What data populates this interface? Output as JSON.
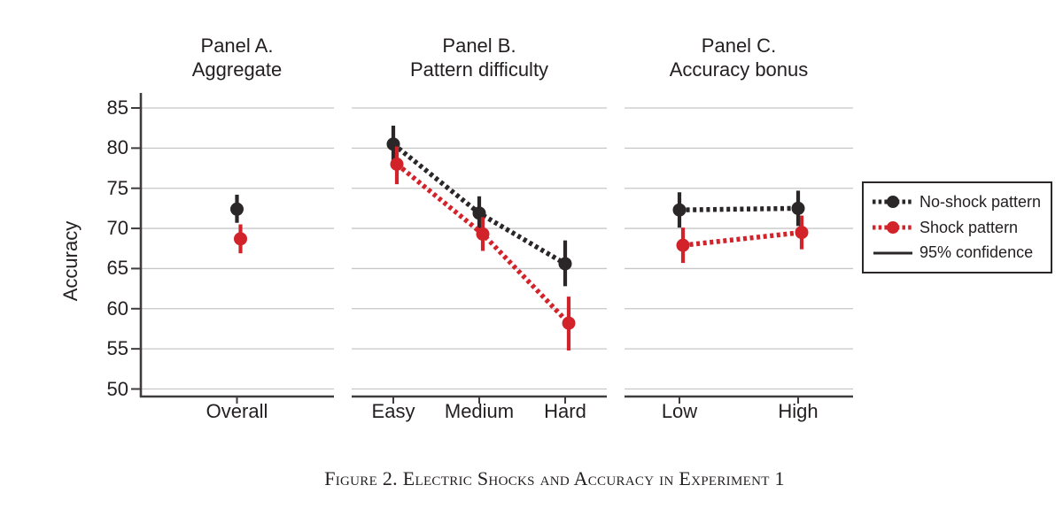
{
  "figure": {
    "y_axis_label": "Accuracy",
    "caption": "Figure 2. Electric Shocks and Accuracy in Experiment 1"
  },
  "legend": {
    "items": [
      {
        "label": "No-shock pattern",
        "type": "dotted-dot",
        "color": "#2b2627"
      },
      {
        "label": "Shock pattern",
        "type": "dotted-dot",
        "color": "#d2232a"
      },
      {
        "label": "95% confidence",
        "type": "solid-line",
        "color": "#2b2627"
      }
    ]
  },
  "chart_data": {
    "type": "scatter",
    "ylabel": "Accuracy",
    "xlabel": "",
    "ylim": [
      50,
      85
    ],
    "yticks": [
      50,
      55,
      60,
      65,
      70,
      75,
      80,
      85
    ],
    "grid": true,
    "legend_position": "right",
    "grid_color": "#c7c7c7",
    "axis_color": "#403c3d",
    "text_color": "#231f20",
    "panels": [
      {
        "title1": "Panel A.",
        "title2": "Aggregate",
        "categories": [
          "Overall"
        ],
        "series": [
          {
            "name": "No-shock pattern",
            "color": "#2b2627",
            "connect": false,
            "values": [
              72.4
            ],
            "ci_low": [
              70.7
            ],
            "ci_high": [
              74.2
            ]
          },
          {
            "name": "Shock pattern",
            "color": "#d2232a",
            "connect": false,
            "values": [
              68.7
            ],
            "ci_low": [
              66.9
            ],
            "ci_high": [
              70.5
            ]
          }
        ]
      },
      {
        "title1": "Panel B.",
        "title2": "Pattern difficulty",
        "categories": [
          "Easy",
          "Medium",
          "Hard"
        ],
        "series": [
          {
            "name": "No-shock pattern",
            "color": "#2b2627",
            "connect": true,
            "values": [
              80.5,
              71.9,
              65.6
            ],
            "ci_low": [
              78.2,
              69.8,
              62.8
            ],
            "ci_high": [
              82.8,
              74.0,
              68.5
            ]
          },
          {
            "name": "Shock pattern",
            "color": "#d2232a",
            "connect": true,
            "values": [
              78.0,
              69.3,
              58.2
            ],
            "ci_low": [
              75.5,
              67.2,
              54.8
            ],
            "ci_high": [
              80.2,
              71.4,
              61.5
            ]
          }
        ]
      },
      {
        "title1": "Panel C.",
        "title2": "Accuracy bonus",
        "categories": [
          "Low",
          "High"
        ],
        "series": [
          {
            "name": "No-shock pattern",
            "color": "#2b2627",
            "connect": true,
            "values": [
              72.3,
              72.5
            ],
            "ci_low": [
              70.1,
              70.3
            ],
            "ci_high": [
              74.5,
              74.7
            ]
          },
          {
            "name": "Shock pattern",
            "color": "#d2232a",
            "connect": true,
            "values": [
              67.9,
              69.5
            ],
            "ci_low": [
              65.7,
              67.4
            ],
            "ci_high": [
              70.1,
              71.6
            ]
          }
        ]
      }
    ]
  }
}
